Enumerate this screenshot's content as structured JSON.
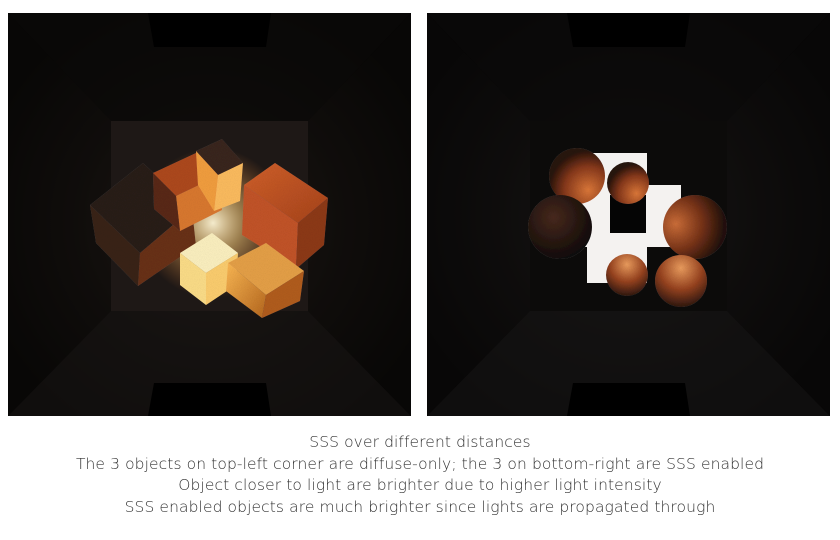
{
  "figures": [
    {
      "id": "diffuse-vs-sss-cubes",
      "objects": "cubes"
    },
    {
      "id": "diffuse-vs-sss-spheres",
      "objects": "spheres"
    }
  ],
  "colors": {
    "background": "#ffffff",
    "render_background": "#020202",
    "caption_text": "#333333",
    "sss_orange": "#c8551e",
    "hot_core": "#fff2c0"
  },
  "caption": {
    "title": "SSS over different distances",
    "line1": "The 3 objects on top-left corner are diffuse-only; the 3 on bottom-right are SSS enabled",
    "line2": "Object closer to light are brighter due to higher light intensity",
    "line3": "SSS enabled objects are much brighter since lights are propagated through"
  }
}
